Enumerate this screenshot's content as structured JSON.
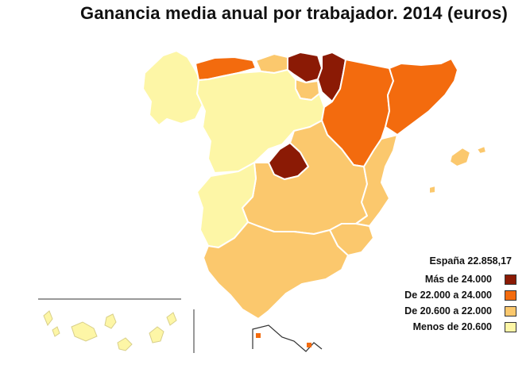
{
  "title": "Ganancia media anual por trabajador. 2014 (euros)",
  "total_label": "España 22.858,17",
  "colors": {
    "mas_24000": "#8b1a05",
    "de_22000_24000": "#f36b0e",
    "de_20600_22000": "#fbc86d",
    "menos_20600": "#fdf6a6"
  },
  "legend": [
    {
      "label": "Más de 24.000",
      "color": "#8b1a05"
    },
    {
      "label": "De 22.000 a 24.000",
      "color": "#f36b0e"
    },
    {
      "label": "De 20.600 a 22.000",
      "color": "#fbc86d"
    },
    {
      "label": "Menos de 20.600",
      "color": "#fdf6a6"
    }
  ]
}
